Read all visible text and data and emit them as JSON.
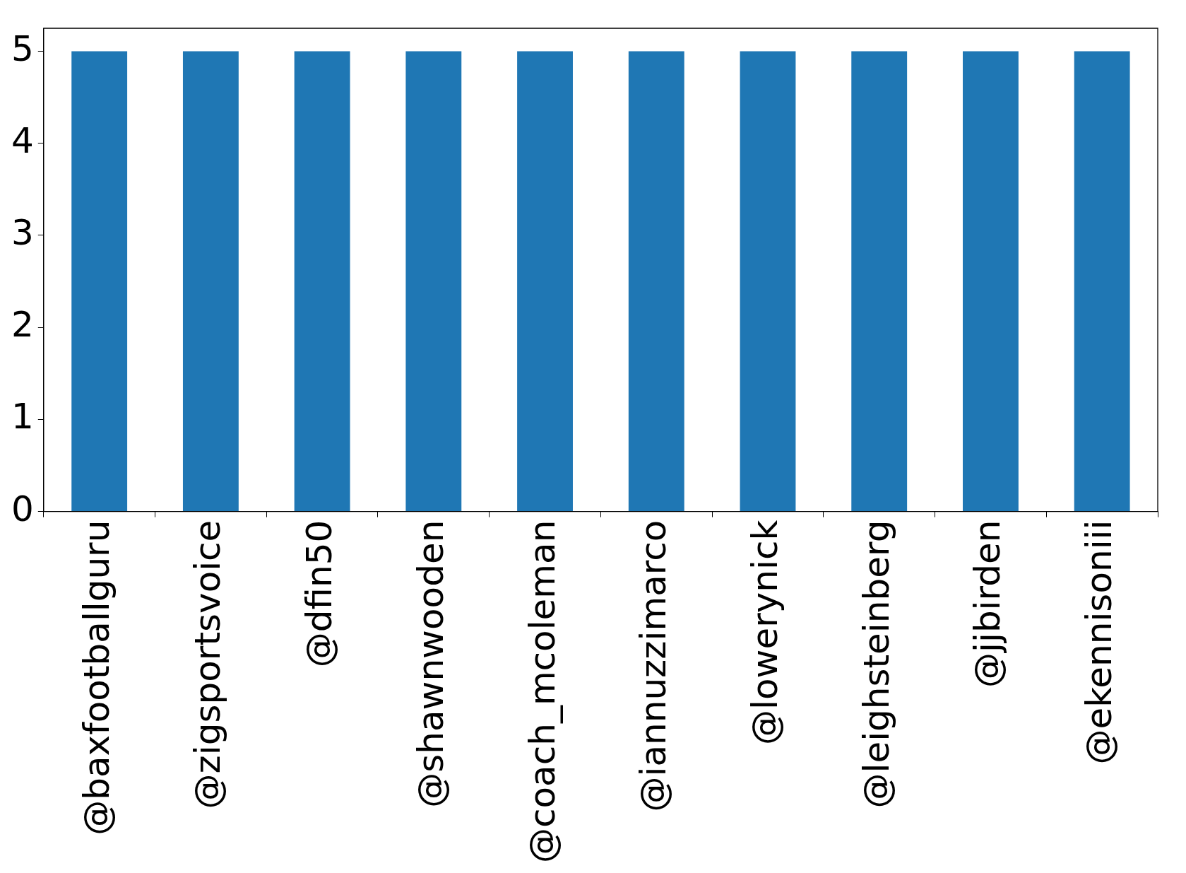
{
  "chart_data": {
    "type": "bar",
    "categories": [
      "@baxfootballguru",
      "@zigsportsvoice",
      "@dfin50",
      "@shawnwooden",
      "@coach_mcoleman",
      "@iannuzzimarco",
      "@lowerynick",
      "@leighsteinberg",
      "@jjbirden",
      "@ekennisoniii"
    ],
    "values": [
      5,
      5,
      5,
      5,
      5,
      5,
      5,
      5,
      5,
      5
    ],
    "color": "#1f77b4",
    "ylim": [
      0,
      5.25
    ],
    "yticks": [
      0,
      1,
      2,
      3,
      4,
      5
    ],
    "grid": false,
    "legend": false
  }
}
